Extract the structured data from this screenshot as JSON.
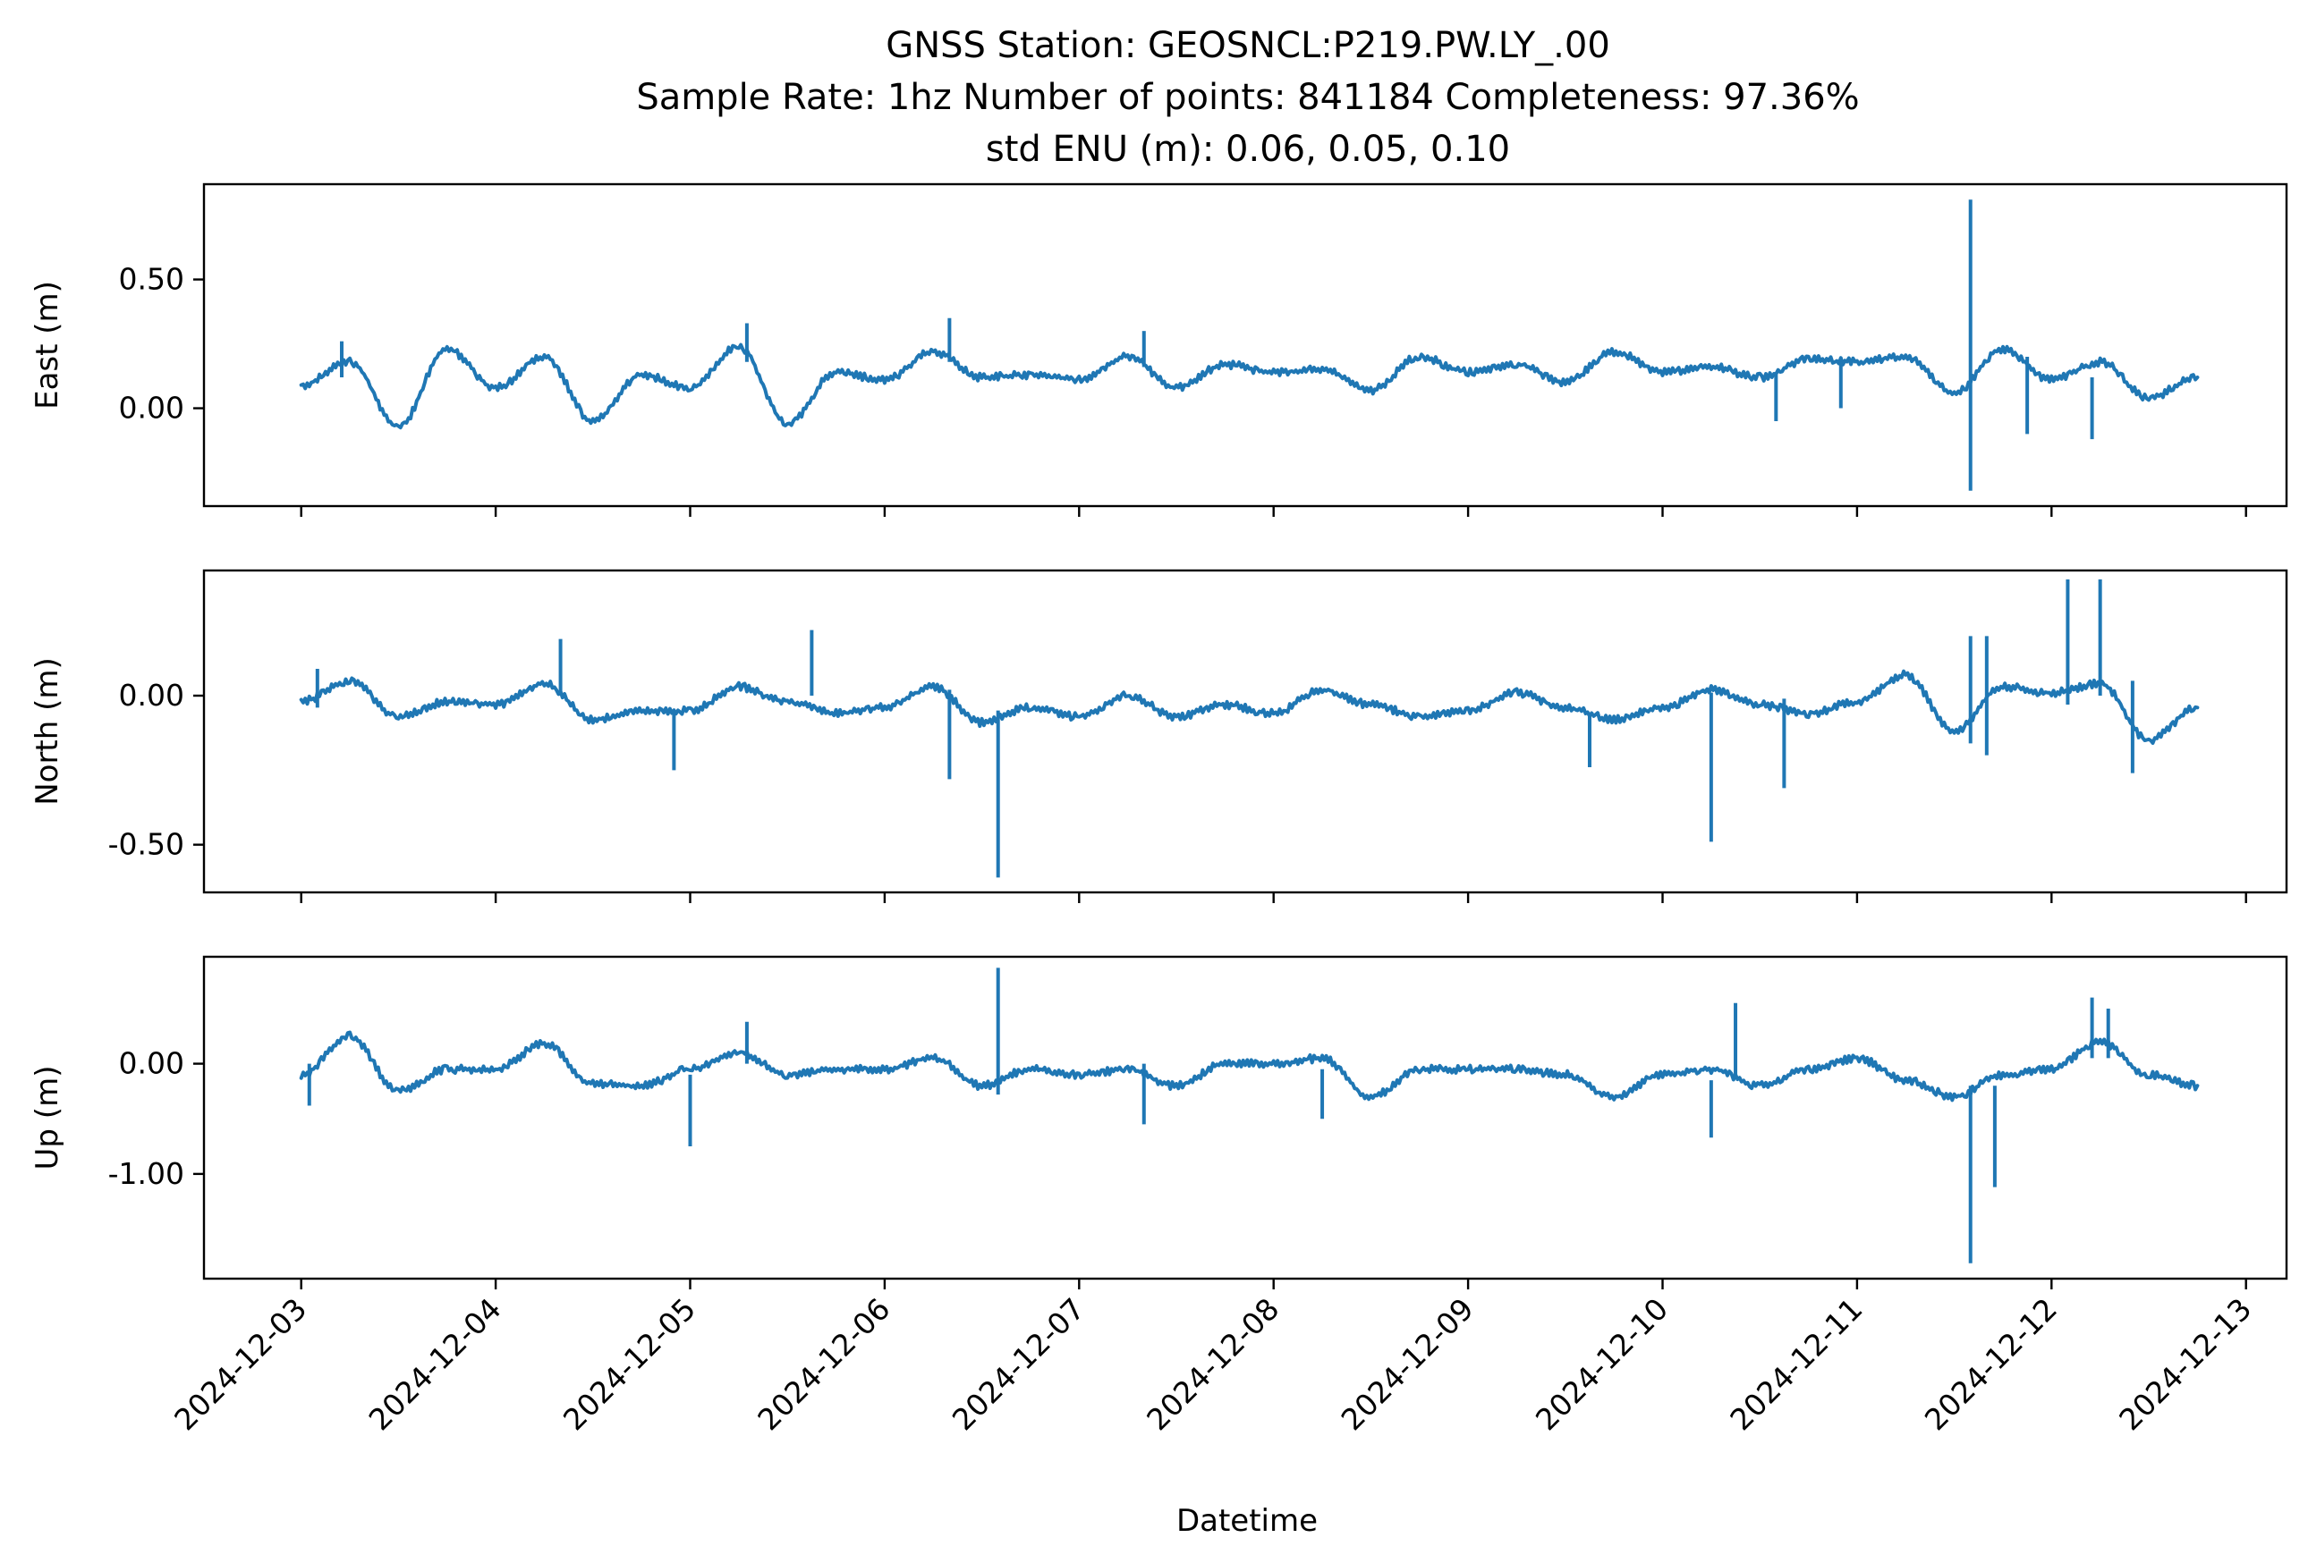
{
  "chart_data": {
    "type": "line",
    "title_lines": [
      "GNSS Station: GEOSNCL:P219.PW.LY_.00",
      "Sample Rate: 1hz   Number of points: 841184    Completeness:  97.36%",
      "std ENU (m):  0.06, 0.05, 0.10"
    ],
    "xlabel": "Datetime",
    "x_ticks": [
      "2024-12-03",
      "2024-12-04",
      "2024-12-05",
      "2024-12-06",
      "2024-12-07",
      "2024-12-08",
      "2024-12-09",
      "2024-12-10",
      "2024-12-11",
      "2024-12-12",
      "2024-12-13"
    ],
    "x_range": [
      "2024-12-02 12:00",
      "2024-12-13 05:00"
    ],
    "color": "#1f77b4",
    "panels": [
      {
        "ylabel": "East (m)",
        "ylim": [
          -0.38,
          0.87
        ],
        "y_ticks": [
          0.5,
          0.0
        ],
        "y_tick_labels": [
          "0.50",
          "0.00"
        ],
        "x": [
          "2024-12-03 00:00",
          "2024-12-03 06:00",
          "2024-12-03 12:00",
          "2024-12-03 18:00",
          "2024-12-04 00:00",
          "2024-12-04 06:00",
          "2024-12-04 12:00",
          "2024-12-04 18:00",
          "2024-12-05 00:00",
          "2024-12-05 06:00",
          "2024-12-05 12:00",
          "2024-12-05 18:00",
          "2024-12-06 00:00",
          "2024-12-06 06:00",
          "2024-12-06 12:00",
          "2024-12-06 18:00",
          "2024-12-07 00:00",
          "2024-12-07 06:00",
          "2024-12-07 12:00",
          "2024-12-07 18:00",
          "2024-12-08 00:00",
          "2024-12-08 06:00",
          "2024-12-08 12:00",
          "2024-12-08 18:00",
          "2024-12-09 00:00",
          "2024-12-09 06:00",
          "2024-12-09 12:00",
          "2024-12-09 18:00",
          "2024-12-10 00:00",
          "2024-12-10 06:00",
          "2024-12-10 12:00",
          "2024-12-10 18:00",
          "2024-12-11 00:00",
          "2024-12-11 06:00",
          "2024-12-11 12:00",
          "2024-12-11 18:00",
          "2024-12-12 00:00",
          "2024-12-12 06:00",
          "2024-12-12 12:00",
          "2024-12-12 18:00"
        ],
        "y": [
          0.09,
          0.18,
          -0.07,
          0.23,
          0.08,
          0.2,
          -0.05,
          0.13,
          0.08,
          0.24,
          -0.06,
          0.14,
          0.11,
          0.22,
          0.12,
          0.13,
          0.11,
          0.2,
          0.08,
          0.17,
          0.14,
          0.15,
          0.07,
          0.2,
          0.14,
          0.17,
          0.1,
          0.22,
          0.14,
          0.16,
          0.12,
          0.19,
          0.18,
          0.2,
          0.06,
          0.23,
          0.11,
          0.18,
          0.04,
          0.12
        ],
        "spikes": [
          {
            "x": "2024-12-11 14:00",
            "high": 0.81,
            "low": -0.32
          },
          {
            "x": "2024-12-03 05:00",
            "high": 0.26,
            "low": 0.12
          },
          {
            "x": "2024-12-05 07:00",
            "high": 0.33,
            "low": 0.18
          },
          {
            "x": "2024-12-06 08:00",
            "high": 0.35,
            "low": 0.18
          },
          {
            "x": "2024-12-07 08:00",
            "high": 0.3,
            "low": 0.16
          },
          {
            "x": "2024-12-12 05:00",
            "high": 0.12,
            "low": -0.12
          },
          {
            "x": "2024-12-11 21:00",
            "high": 0.2,
            "low": -0.1
          },
          {
            "x": "2024-12-10 14:00",
            "high": 0.13,
            "low": -0.05
          },
          {
            "x": "2024-12-10 22:00",
            "high": 0.18,
            "low": 0.0
          }
        ]
      },
      {
        "ylabel": "North (m)",
        "ylim": [
          -0.66,
          0.42
        ],
        "y_ticks": [
          0.0,
          -0.5
        ],
        "y_tick_labels": [
          "0.00",
          "-0.50"
        ],
        "x": [
          "2024-12-03 00:00",
          "2024-12-03 06:00",
          "2024-12-03 12:00",
          "2024-12-03 18:00",
          "2024-12-04 00:00",
          "2024-12-04 06:00",
          "2024-12-04 12:00",
          "2024-12-04 18:00",
          "2024-12-05 00:00",
          "2024-12-05 06:00",
          "2024-12-05 12:00",
          "2024-12-05 18:00",
          "2024-12-06 00:00",
          "2024-12-06 06:00",
          "2024-12-06 12:00",
          "2024-12-06 18:00",
          "2024-12-07 00:00",
          "2024-12-07 06:00",
          "2024-12-07 12:00",
          "2024-12-07 18:00",
          "2024-12-08 00:00",
          "2024-12-08 06:00",
          "2024-12-08 12:00",
          "2024-12-08 18:00",
          "2024-12-09 00:00",
          "2024-12-09 06:00",
          "2024-12-09 12:00",
          "2024-12-09 18:00",
          "2024-12-10 00:00",
          "2024-12-10 06:00",
          "2024-12-10 12:00",
          "2024-12-10 18:00",
          "2024-12-11 00:00",
          "2024-12-11 06:00",
          "2024-12-11 12:00",
          "2024-12-11 18:00",
          "2024-12-12 00:00",
          "2024-12-12 06:00",
          "2024-12-12 12:00",
          "2024-12-12 18:00"
        ],
        "y": [
          -0.02,
          0.05,
          -0.07,
          -0.02,
          -0.03,
          0.04,
          -0.08,
          -0.05,
          -0.05,
          0.03,
          -0.02,
          -0.06,
          -0.04,
          0.03,
          -0.09,
          -0.04,
          -0.07,
          0.0,
          -0.07,
          -0.03,
          -0.06,
          0.02,
          -0.03,
          -0.07,
          -0.05,
          0.01,
          -0.04,
          -0.08,
          -0.04,
          0.02,
          -0.03,
          -0.06,
          -0.02,
          0.07,
          -0.12,
          0.03,
          0.01,
          0.04,
          -0.15,
          -0.04
        ],
        "spikes": [
          {
            "x": "2024-12-06 14:00",
            "high": -0.05,
            "low": -0.61
          },
          {
            "x": "2024-12-06 08:00",
            "high": 0.02,
            "low": -0.28
          },
          {
            "x": "2024-12-05 15:00",
            "high": 0.22,
            "low": 0.0
          },
          {
            "x": "2024-12-04 08:00",
            "high": 0.19,
            "low": 0.0
          },
          {
            "x": "2024-12-04 22:00",
            "high": -0.06,
            "low": -0.25
          },
          {
            "x": "2024-12-03 02:00",
            "high": 0.09,
            "low": -0.04
          },
          {
            "x": "2024-12-10 06:00",
            "high": 0.01,
            "low": -0.49
          },
          {
            "x": "2024-12-10 15:00",
            "high": -0.01,
            "low": -0.31
          },
          {
            "x": "2024-12-12 02:00",
            "high": 0.39,
            "low": -0.03
          },
          {
            "x": "2024-12-12 06:00",
            "high": 0.39,
            "low": 0.0
          },
          {
            "x": "2024-12-12 10:00",
            "high": 0.05,
            "low": -0.26
          },
          {
            "x": "2024-12-11 14:00",
            "high": 0.2,
            "low": -0.16
          },
          {
            "x": "2024-12-11 16:00",
            "high": 0.2,
            "low": -0.2
          },
          {
            "x": "2024-12-09 15:00",
            "high": -0.07,
            "low": -0.24
          }
        ]
      },
      {
        "ylabel": "Up (m)",
        "ylim": [
          -1.95,
          0.97
        ],
        "y_ticks": [
          0.0,
          -1.0
        ],
        "y_tick_labels": [
          "0.00",
          "-1.00"
        ],
        "x": [
          "2024-12-03 00:00",
          "2024-12-03 06:00",
          "2024-12-03 12:00",
          "2024-12-03 18:00",
          "2024-12-04 00:00",
          "2024-12-04 06:00",
          "2024-12-04 12:00",
          "2024-12-04 18:00",
          "2024-12-05 00:00",
          "2024-12-05 06:00",
          "2024-12-05 12:00",
          "2024-12-05 18:00",
          "2024-12-06 00:00",
          "2024-12-06 06:00",
          "2024-12-06 12:00",
          "2024-12-06 18:00",
          "2024-12-07 00:00",
          "2024-12-07 06:00",
          "2024-12-07 12:00",
          "2024-12-07 18:00",
          "2024-12-08 00:00",
          "2024-12-08 06:00",
          "2024-12-08 12:00",
          "2024-12-08 18:00",
          "2024-12-09 00:00",
          "2024-12-09 06:00",
          "2024-12-09 12:00",
          "2024-12-09 18:00",
          "2024-12-10 00:00",
          "2024-12-10 06:00",
          "2024-12-10 12:00",
          "2024-12-10 18:00",
          "2024-12-11 00:00",
          "2024-12-11 06:00",
          "2024-12-11 12:00",
          "2024-12-11 18:00",
          "2024-12-12 00:00",
          "2024-12-12 06:00",
          "2024-12-12 12:00",
          "2024-12-12 18:00"
        ],
        "y": [
          -0.1,
          0.25,
          -0.25,
          -0.05,
          -0.05,
          0.18,
          -0.18,
          -0.2,
          -0.05,
          0.1,
          -0.1,
          -0.05,
          -0.05,
          0.05,
          -0.2,
          -0.05,
          -0.1,
          -0.05,
          -0.2,
          0.0,
          0.0,
          0.05,
          -0.3,
          -0.05,
          -0.05,
          -0.05,
          -0.1,
          -0.3,
          -0.1,
          -0.05,
          -0.2,
          -0.05,
          0.05,
          -0.15,
          -0.3,
          -0.1,
          -0.05,
          0.2,
          -0.1,
          -0.2
        ],
        "spikes": [
          {
            "x": "2024-12-11 14:00",
            "high": -0.2,
            "low": -1.81
          },
          {
            "x": "2024-12-11 17:00",
            "high": -0.2,
            "low": -1.12
          },
          {
            "x": "2024-12-06 14:00",
            "high": 0.87,
            "low": -0.28
          },
          {
            "x": "2024-12-05 00:00",
            "high": -0.1,
            "low": -0.75
          },
          {
            "x": "2024-12-10 06:00",
            "high": -0.15,
            "low": -0.67
          },
          {
            "x": "2024-12-10 09:00",
            "high": 0.55,
            "low": -0.1
          },
          {
            "x": "2024-12-07 08:00",
            "high": 0.0,
            "low": -0.55
          },
          {
            "x": "2024-12-08 06:00",
            "high": -0.05,
            "low": -0.5
          },
          {
            "x": "2024-12-12 05:00",
            "high": 0.6,
            "low": 0.05
          },
          {
            "x": "2024-12-12 07:00",
            "high": 0.5,
            "low": 0.05
          },
          {
            "x": "2024-12-05 07:00",
            "high": 0.38,
            "low": 0.0
          },
          {
            "x": "2024-12-03 01:00",
            "high": 0.0,
            "low": -0.38
          }
        ]
      }
    ]
  }
}
